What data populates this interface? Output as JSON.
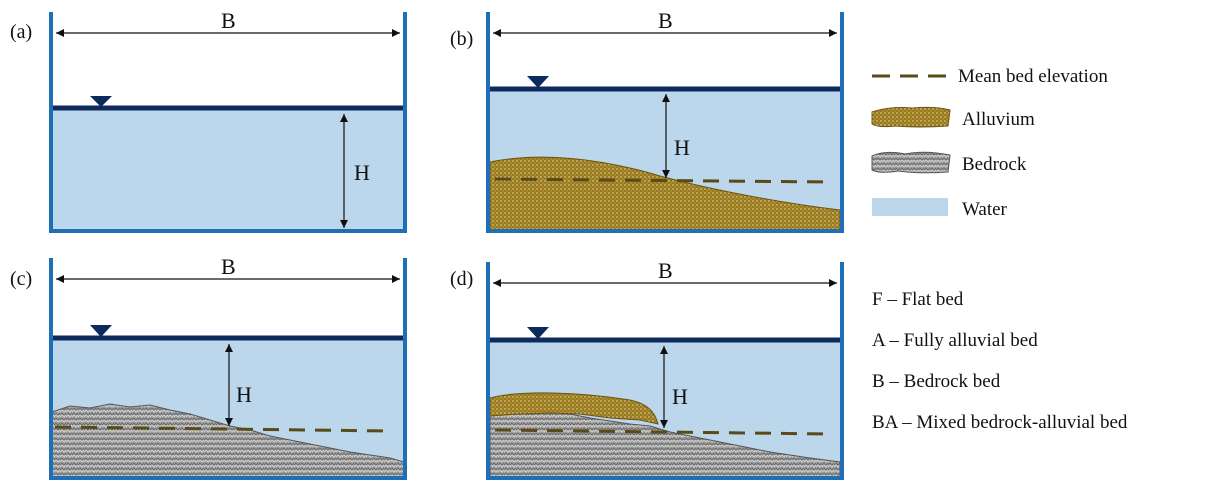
{
  "panels": [
    {
      "id": "a",
      "label": "(a)",
      "width_label": "B",
      "depth_label": "H"
    },
    {
      "id": "b",
      "label": "(b)",
      "width_label": "B",
      "depth_label": "H"
    },
    {
      "id": "c",
      "label": "(c)",
      "width_label": "B",
      "depth_label": "H"
    },
    {
      "id": "d",
      "label": "(d)",
      "width_label": "B",
      "depth_label": "H"
    }
  ],
  "legend": [
    {
      "key": "mean_bed",
      "label": "Mean bed elevation",
      "icon": "dashed-line-icon"
    },
    {
      "key": "alluvium",
      "label": "Alluvium",
      "icon": "alluvium-swatch-icon"
    },
    {
      "key": "bedrock",
      "label": "Bedrock",
      "icon": "bedrock-swatch-icon"
    },
    {
      "key": "water",
      "label": "Water",
      "icon": "water-swatch-icon"
    }
  ],
  "bed_types": [
    "F – Flat bed",
    "A – Fully alluvial bed",
    "B – Bedrock bed",
    "BA – Mixed bedrock-alluvial bed"
  ],
  "colors": {
    "wall": "#1f6fb6",
    "water": "#bcd6ec",
    "surface": "#0d2a5c",
    "alluvium": "#9a7a1e",
    "alluvium_dot": "#e9dfb0",
    "bedrock": "#a0a0a0",
    "mean_bed": "#5a4a1a"
  }
}
